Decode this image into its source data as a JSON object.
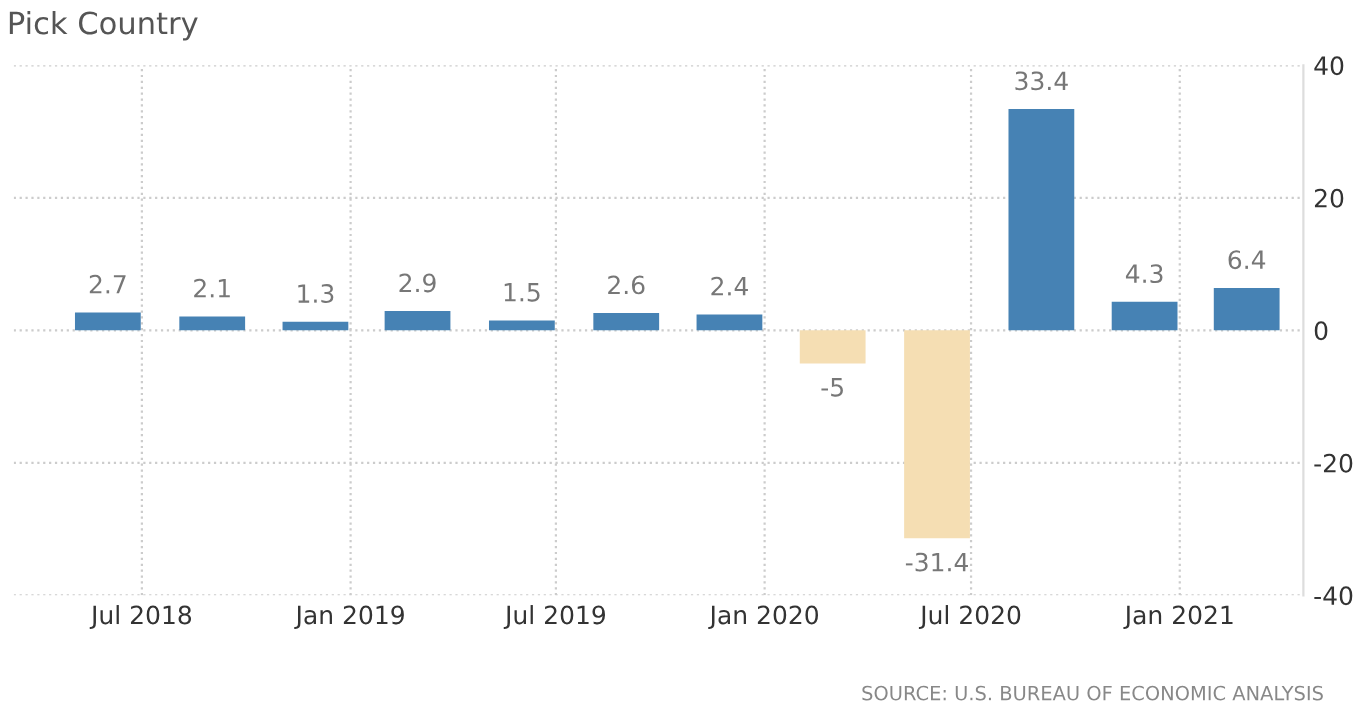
{
  "chart_data": {
    "type": "bar",
    "title": "Pick Country",
    "x": [
      "2018-06-01",
      "2018-09-01",
      "2018-12-01",
      "2019-03-01",
      "2019-06-01",
      "2019-09-01",
      "2019-12-01",
      "2020-03-01",
      "2020-06-01",
      "2020-09-01",
      "2020-12-01",
      "2021-03-01"
    ],
    "values": [
      2.7,
      2.1,
      1.3,
      2.9,
      1.5,
      2.6,
      2.4,
      -5,
      -31.4,
      33.4,
      4.3,
      6.4
    ],
    "colors": [
      "#4682b4",
      "#4682b4",
      "#4682b4",
      "#4682b4",
      "#4682b4",
      "#4682b4",
      "#4682b4",
      "#f5deb3",
      "#f5deb3",
      "#4682b4",
      "#4682b4",
      "#4682b4"
    ],
    "data_labels": true,
    "xlim": [
      "2018-03-10",
      "2021-04-20"
    ],
    "xticks": [
      {
        "value": "2018-07-01",
        "label": "Jul 2018"
      },
      {
        "value": "2019-01-01",
        "label": "Jan 2019"
      },
      {
        "value": "2019-07-01",
        "label": "Jul 2019"
      },
      {
        "value": "2020-01-01",
        "label": "Jan 2020"
      },
      {
        "value": "2020-07-01",
        "label": "Jul 2020"
      },
      {
        "value": "2021-01-01",
        "label": "Jan 2021"
      }
    ],
    "ylim": [
      -40,
      40
    ],
    "yticks": [
      40,
      20,
      0,
      -20,
      -40
    ],
    "grid": true,
    "line_style": "dotted",
    "annotations": [
      "SOURCE: U.S. BUREAU OF ECONOMIC ANALYSIS"
    ]
  }
}
